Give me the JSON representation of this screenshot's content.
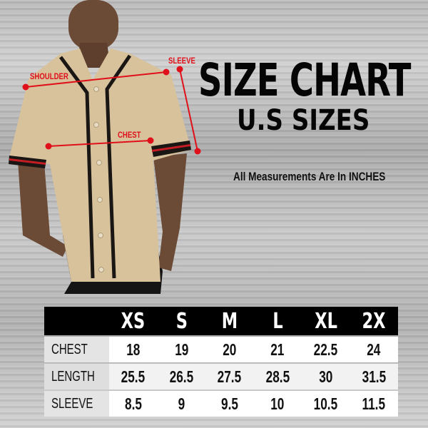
{
  "header": {
    "title": "SIZE CHART",
    "subtitle": "U.S SIZES",
    "note": "All Measurements Are In INCHES"
  },
  "measurement_labels": {
    "shoulder": "SHOULDER",
    "sleeve": "SLEEVE",
    "chest": "CHEST"
  },
  "colors": {
    "accent": "#e0101a",
    "shirt": "#d8c29c",
    "trim": "#1a1614"
  },
  "table": {
    "sizes": [
      "XS",
      "S",
      "M",
      "L",
      "XL",
      "2X"
    ],
    "rows": [
      {
        "label": "CHEST",
        "values": [
          "18",
          "19",
          "20",
          "21",
          "22.5",
          "24"
        ]
      },
      {
        "label": "LENGTH",
        "values": [
          "25.5",
          "26.5",
          "27.5",
          "28.5",
          "30",
          "31.5"
        ]
      },
      {
        "label": "SLEEVE",
        "values": [
          "8.5",
          "9",
          "9.5",
          "10",
          "10.5",
          "11.5"
        ]
      }
    ]
  }
}
